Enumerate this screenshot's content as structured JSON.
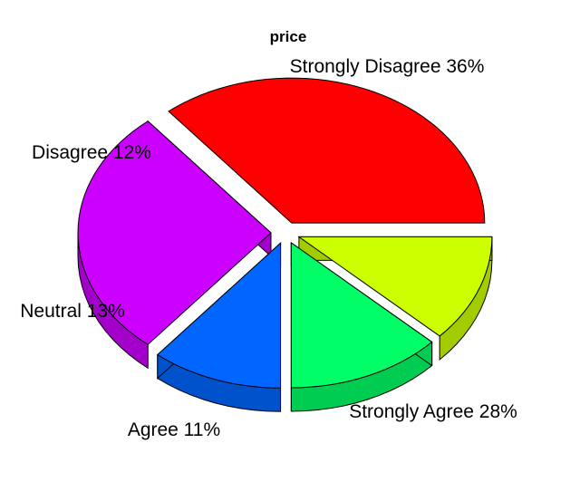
{
  "chart_data": {
    "type": "pie",
    "style": "3d-exploded",
    "title": "price",
    "slices": [
      {
        "name": "Strongly Disagree",
        "value": 36,
        "label": "Strongly Disagree 36%",
        "color": "#FF0000",
        "side_color": "#CC0000"
      },
      {
        "name": "Strongly Agree",
        "value": 28,
        "label": "Strongly Agree 28%",
        "color": "#CC00FF",
        "side_color": "#A300CC"
      },
      {
        "name": "Agree",
        "value": 11,
        "label": "Agree 11%",
        "color": "#0066FF",
        "side_color": "#0052CC"
      },
      {
        "name": "Neutral",
        "value": 13,
        "label": "Neutral 13%",
        "color": "#00FF66",
        "side_color": "#00CC52"
      },
      {
        "name": "Disagree",
        "value": 12,
        "label": "Disagree 12%",
        "color": "#CCFF00",
        "side_color": "#A3CC00"
      }
    ],
    "legend": "none"
  }
}
